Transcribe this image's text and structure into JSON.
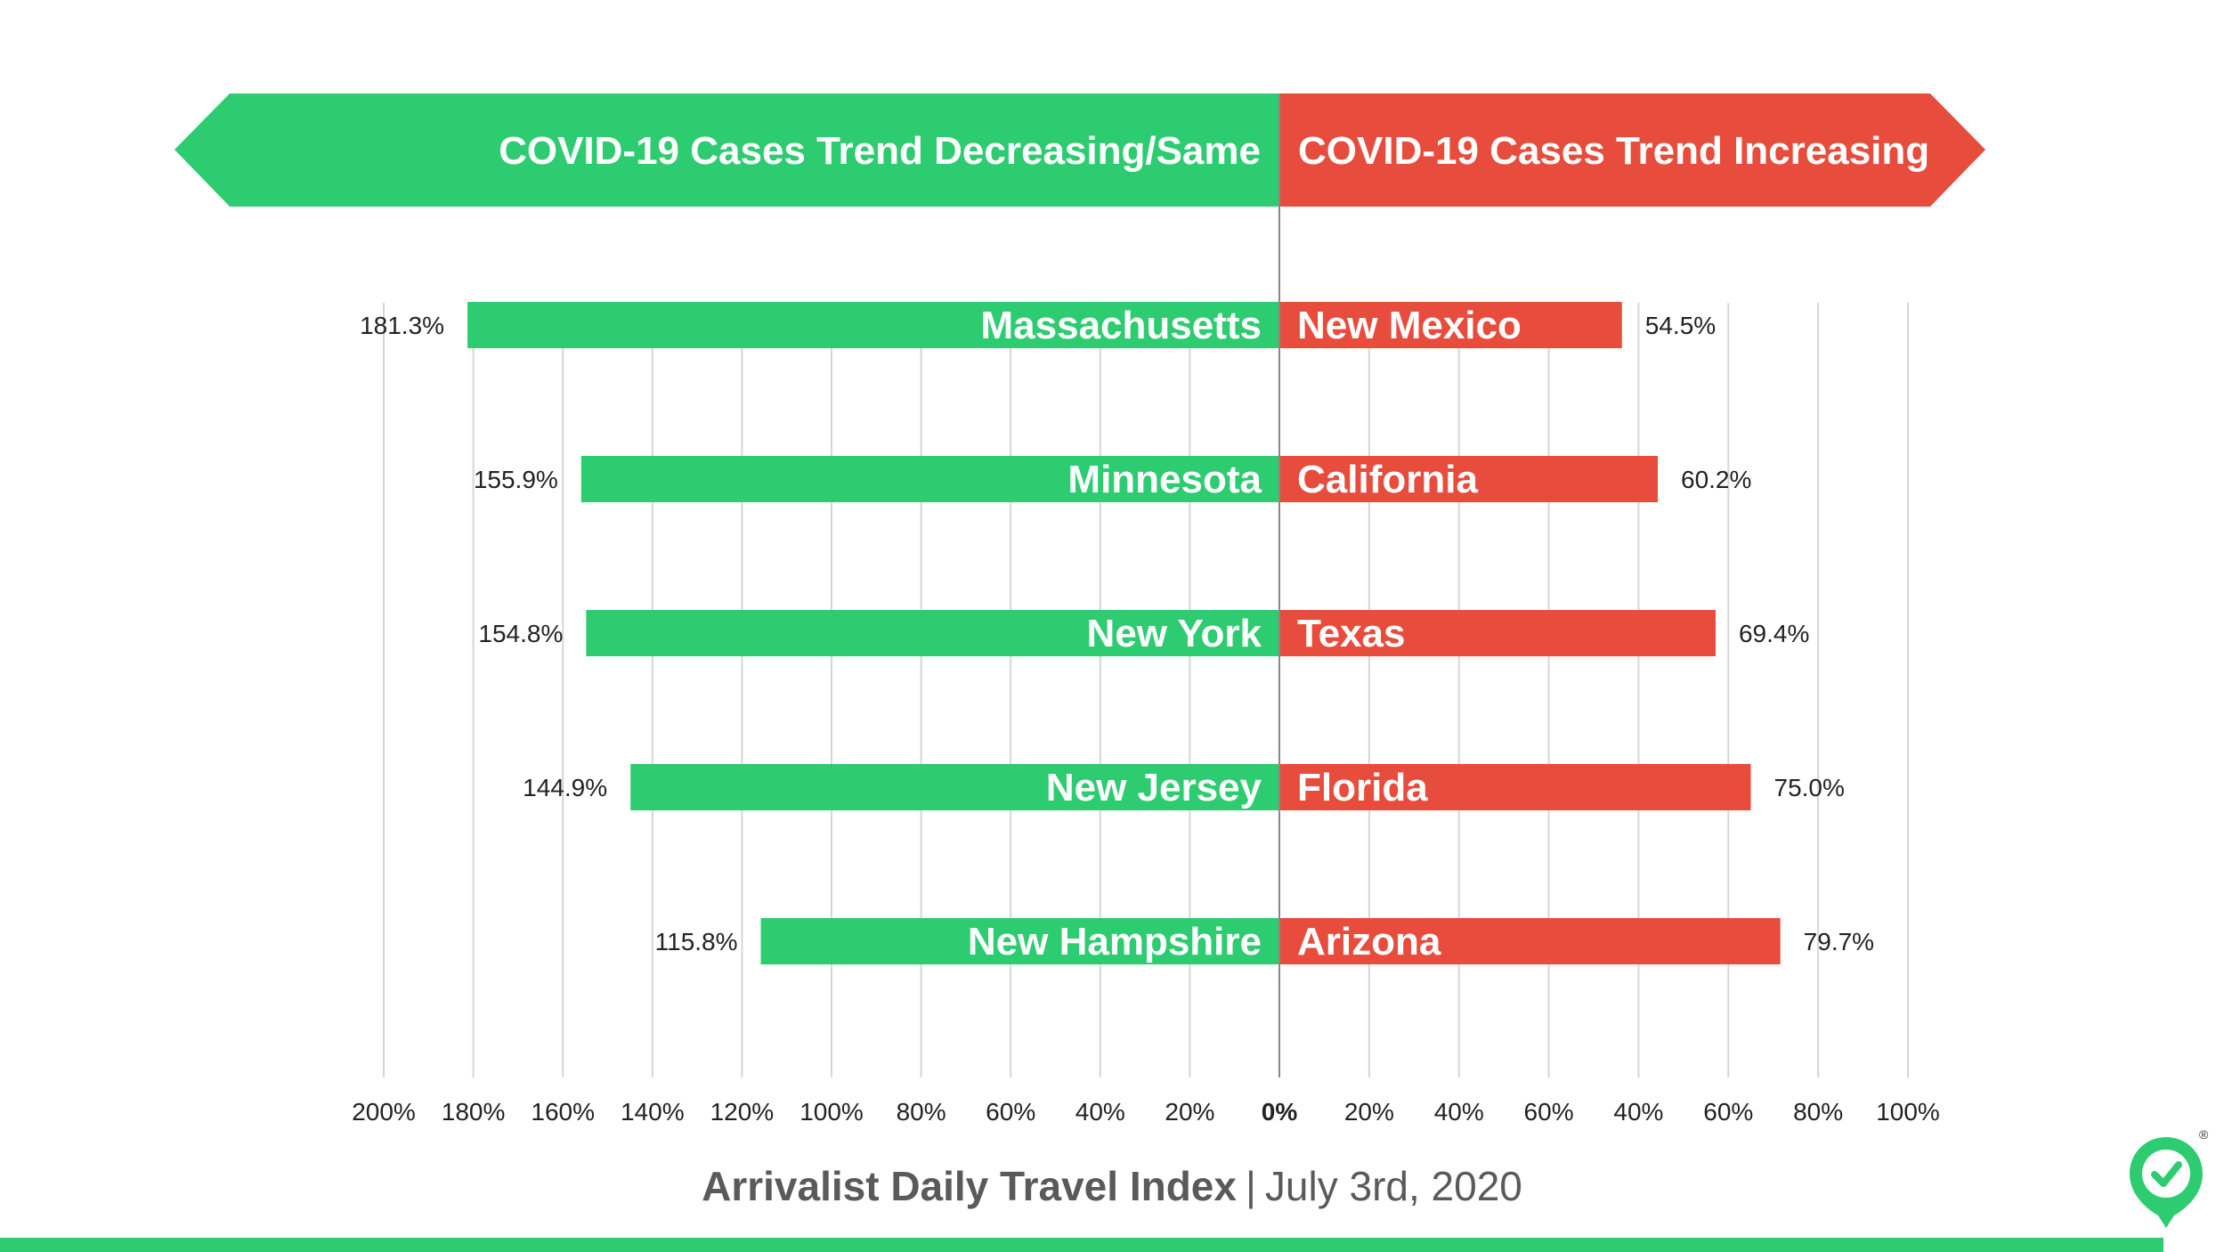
{
  "chart_data": {
    "type": "bar",
    "left_panel": {
      "header": "COVID-19 Cases Trend Decreasing/Same",
      "color": "#2ecc71",
      "categories": [
        "Massachusetts",
        "Minnesota",
        "New York",
        "New Jersey",
        "New Hampshire"
      ],
      "values": [
        181.3,
        155.9,
        154.8,
        144.9,
        115.8
      ],
      "value_labels": [
        "181.3%",
        "155.9%",
        "154.8%",
        "144.9%",
        "115.8%"
      ],
      "xlim": [
        0,
        200
      ],
      "tick_labels": [
        "200%",
        "180%",
        "160%",
        "140%",
        "120%",
        "100%",
        "80%",
        "60%",
        "40%",
        "20%"
      ]
    },
    "right_panel": {
      "header": "COVID-19 Cases Trend Increasing",
      "color": "#e74c3c",
      "categories": [
        "New Mexico",
        "California",
        "Texas",
        "Florida",
        "Arizona"
      ],
      "values": [
        54.5,
        60.2,
        69.4,
        75.0,
        79.7
      ],
      "value_labels": [
        "54.5%",
        "60.2%",
        "69.4%",
        "75.0%",
        "79.7%"
      ],
      "xlim": [
        0,
        100
      ],
      "tick_labels": [
        "20%",
        "40%",
        "60%",
        "40%",
        "60%",
        "80%",
        "100%"
      ]
    },
    "zero_label": "0%",
    "grid": true
  },
  "footer": {
    "brand": "Arrivalist Daily Travel Index",
    "separator": "|",
    "date": "July 3rd, 2020"
  },
  "logo": {
    "icon": "checkmark-pin-icon",
    "mark": "®",
    "color": "#2ecc71"
  }
}
